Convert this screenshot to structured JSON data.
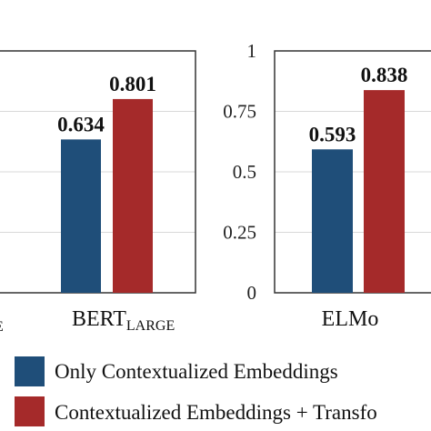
{
  "chart_data": [
    {
      "type": "bar",
      "categories": [
        "BERT"
      ],
      "category_subscripts": [
        "LARGE"
      ],
      "partial_left_label": "E",
      "series": [
        {
          "name": "Only Contextualized Embeddings",
          "values": [
            0.634
          ]
        },
        {
          "name": "Contextualized Embeddings + Transfo",
          "values": [
            0.801
          ]
        }
      ],
      "data_labels": [
        "0.634",
        "0.801"
      ],
      "ylim": [
        0,
        1
      ],
      "grid": true
    },
    {
      "type": "bar",
      "categories": [
        "ELMo"
      ],
      "series": [
        {
          "name": "Only Contextualized Embeddings",
          "values": [
            0.593
          ]
        },
        {
          "name": "Contextualized Embeddings + Transfo",
          "values": [
            0.838
          ]
        }
      ],
      "data_labels": [
        "0.593",
        "0.838"
      ],
      "ylim": [
        0,
        1
      ],
      "yticks": [
        "0",
        "0.25",
        "0.5",
        "0.75",
        "1"
      ],
      "grid": true
    }
  ],
  "legend": {
    "placement": "bottom",
    "items": [
      {
        "label": "Only Contextualized Embeddings",
        "color": "#1f4e79"
      },
      {
        "label": "Contextualized Embeddings + Transfo",
        "color": "#a52a2a"
      }
    ]
  },
  "colors": {
    "series0": "#1f4e79",
    "series1": "#a52a2a",
    "grid": "#d9d9d9",
    "frame": "#333333"
  }
}
